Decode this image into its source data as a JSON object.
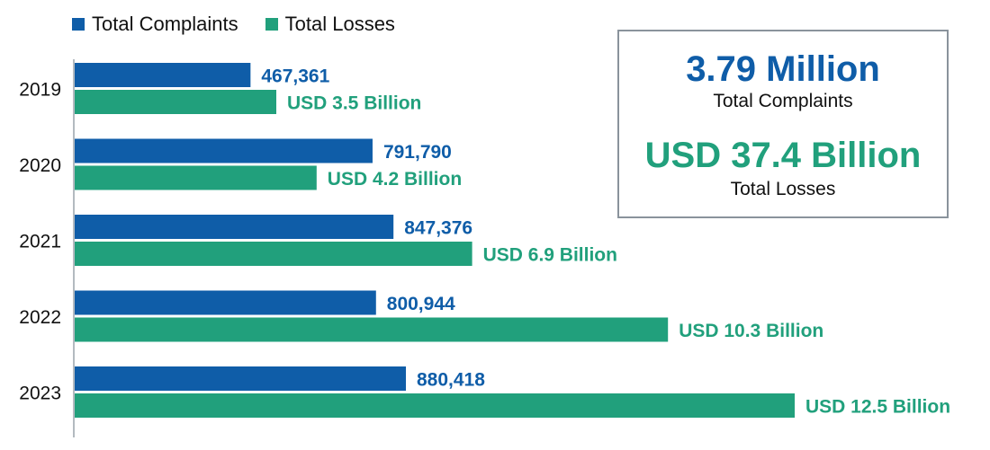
{
  "colors": {
    "complaints": "#0f5da8",
    "losses": "#21a07c",
    "axis": "#9aa3ab",
    "border": "#8a939c"
  },
  "legend": {
    "complaints_label": "Total Complaints",
    "losses_label": "Total Losses"
  },
  "summary": {
    "complaints_value": "3.79 Million",
    "complaints_label": "Total Complaints",
    "losses_value": "USD 37.4 Billion",
    "losses_label": "Total Losses"
  },
  "chart_data": {
    "type": "bar",
    "orientation": "horizontal",
    "categories": [
      "2019",
      "2020",
      "2021",
      "2022",
      "2023"
    ],
    "series": [
      {
        "name": "Total Complaints",
        "values": [
          467361,
          791790,
          847376,
          800944,
          880418
        ],
        "labels": [
          "467,361",
          "791,790",
          "847,376",
          "800,944",
          "880,418"
        ]
      },
      {
        "name": "Total Losses",
        "values": [
          3.5,
          4.2,
          6.9,
          10.3,
          12.5
        ],
        "labels": [
          "USD 3.5 Billion",
          "USD 4.2 Billion",
          "USD 6.9 Billion",
          "USD 10.3 Billion",
          "USD 12.5 Billion"
        ]
      }
    ],
    "grid": false,
    "legend_position": "top-left"
  }
}
